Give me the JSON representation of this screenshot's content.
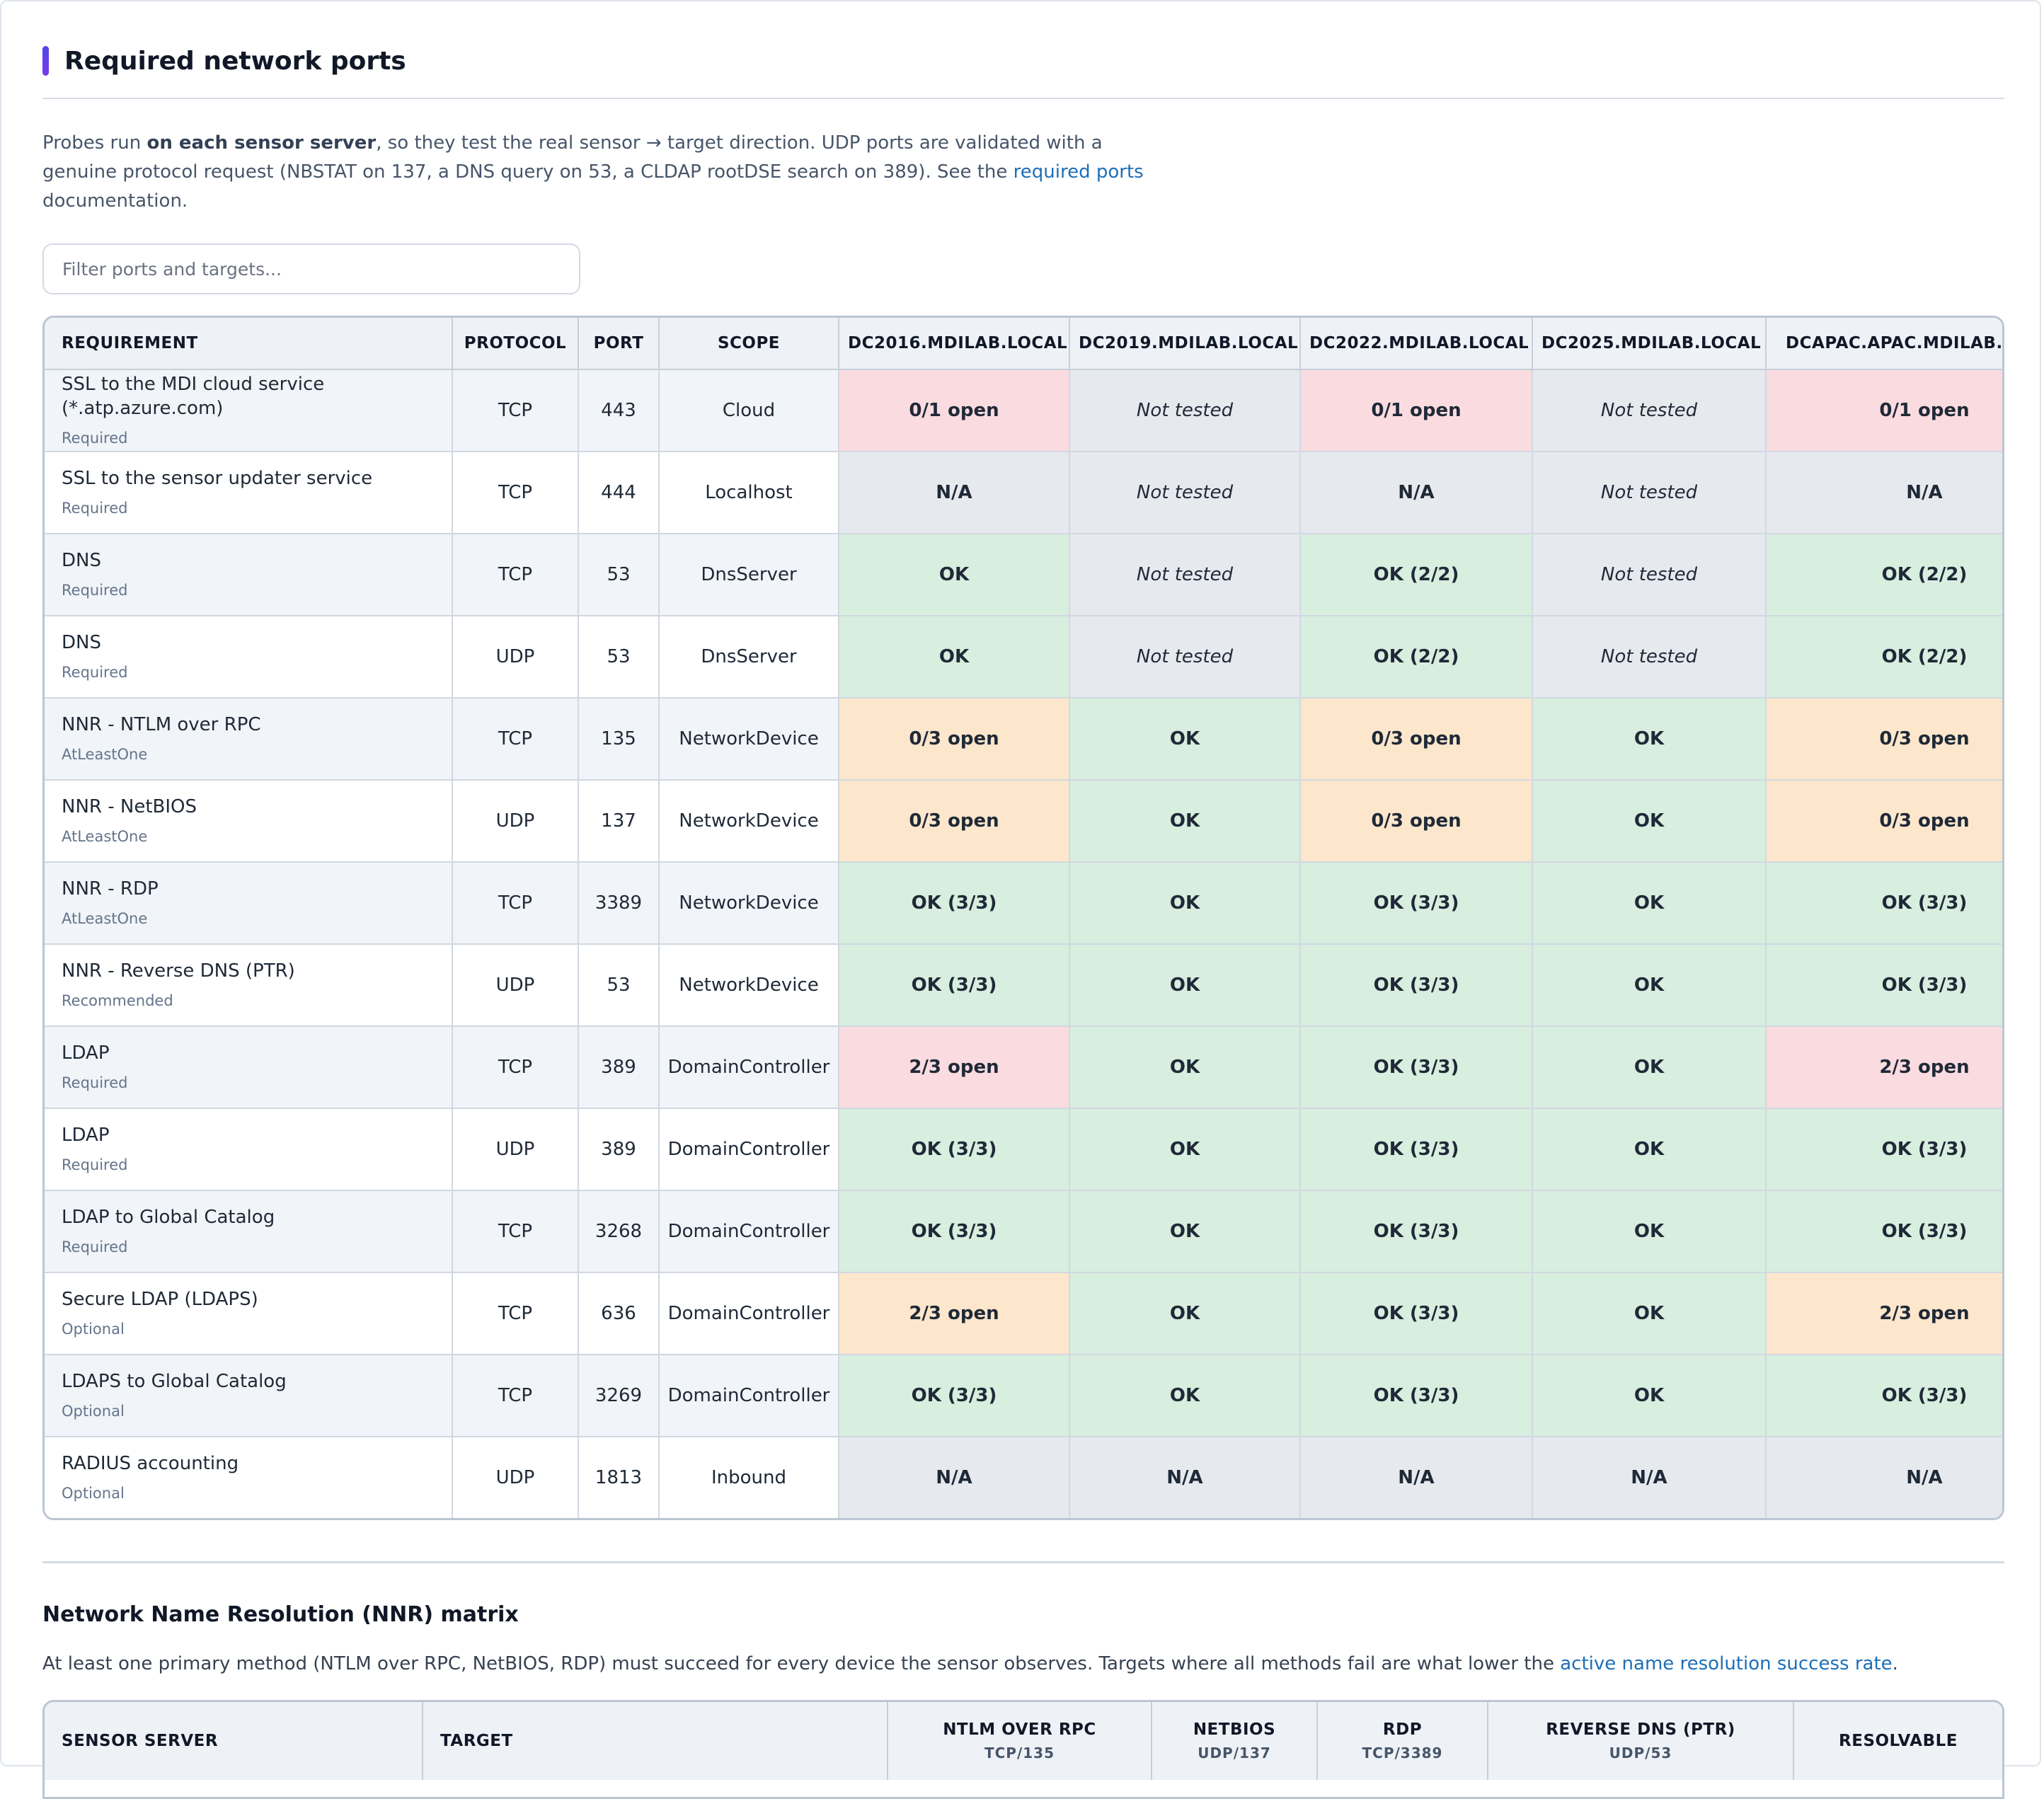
{
  "section": {
    "title": "Required network ports",
    "intro_pre": "Probes run ",
    "intro_bold": "on each sensor server",
    "intro_mid": ", so they test the real sensor → target direction. UDP ports are validated with a genuine protocol request (NBSTAT on 137, a DNS query on 53, a CLDAP rootDSE search on 389). See the ",
    "intro_link": "required ports",
    "intro_post": " documentation.",
    "filter_placeholder": "Filter ports and targets..."
  },
  "ports_table": {
    "columns": [
      "REQUIREMENT",
      "PROTOCOL",
      "PORT",
      "SCOPE",
      "DC2016.MDILAB.LOCAL",
      "DC2019.MDILAB.LOCAL",
      "DC2022.MDILAB.LOCAL",
      "DC2025.MDILAB.LOCAL",
      "DCAPAC.APAC.MDILAB.LOCAL"
    ],
    "rows": [
      {
        "name": "SSL to the MDI cloud service (*.atp.azure.com)",
        "level": "Required",
        "protocol": "TCP",
        "port": "443",
        "scope": "Cloud",
        "cells": [
          {
            "text": "0/1 open",
            "status": "fail"
          },
          {
            "text": "Not tested",
            "status": "nt"
          },
          {
            "text": "0/1 open",
            "status": "fail"
          },
          {
            "text": "Not tested",
            "status": "nt"
          },
          {
            "text": "0/1 open",
            "status": "fail"
          }
        ]
      },
      {
        "name": "SSL to the sensor updater service",
        "level": "Required",
        "protocol": "TCP",
        "port": "444",
        "scope": "Localhost",
        "cells": [
          {
            "text": "N/A",
            "status": "na"
          },
          {
            "text": "Not tested",
            "status": "nt"
          },
          {
            "text": "N/A",
            "status": "na"
          },
          {
            "text": "Not tested",
            "status": "nt"
          },
          {
            "text": "N/A",
            "status": "na"
          }
        ]
      },
      {
        "name": "DNS",
        "level": "Required",
        "protocol": "TCP",
        "port": "53",
        "scope": "DnsServer",
        "cells": [
          {
            "text": "OK",
            "status": "ok"
          },
          {
            "text": "Not tested",
            "status": "nt"
          },
          {
            "text": "OK (2/2)",
            "status": "ok"
          },
          {
            "text": "Not tested",
            "status": "nt"
          },
          {
            "text": "OK (2/2)",
            "status": "ok"
          }
        ]
      },
      {
        "name": "DNS",
        "level": "Required",
        "protocol": "UDP",
        "port": "53",
        "scope": "DnsServer",
        "cells": [
          {
            "text": "OK",
            "status": "ok"
          },
          {
            "text": "Not tested",
            "status": "nt"
          },
          {
            "text": "OK (2/2)",
            "status": "ok"
          },
          {
            "text": "Not tested",
            "status": "nt"
          },
          {
            "text": "OK (2/2)",
            "status": "ok"
          }
        ]
      },
      {
        "name": "NNR - NTLM over RPC",
        "level": "AtLeastOne",
        "protocol": "TCP",
        "port": "135",
        "scope": "NetworkDevice",
        "cells": [
          {
            "text": "0/3 open",
            "status": "warn"
          },
          {
            "text": "OK",
            "status": "ok"
          },
          {
            "text": "0/3 open",
            "status": "warn"
          },
          {
            "text": "OK",
            "status": "ok"
          },
          {
            "text": "0/3 open",
            "status": "warn"
          }
        ]
      },
      {
        "name": "NNR - NetBIOS",
        "level": "AtLeastOne",
        "protocol": "UDP",
        "port": "137",
        "scope": "NetworkDevice",
        "cells": [
          {
            "text": "0/3 open",
            "status": "warn"
          },
          {
            "text": "OK",
            "status": "ok"
          },
          {
            "text": "0/3 open",
            "status": "warn"
          },
          {
            "text": "OK",
            "status": "ok"
          },
          {
            "text": "0/3 open",
            "status": "warn"
          }
        ]
      },
      {
        "name": "NNR - RDP",
        "level": "AtLeastOne",
        "protocol": "TCP",
        "port": "3389",
        "scope": "NetworkDevice",
        "cells": [
          {
            "text": "OK (3/3)",
            "status": "ok"
          },
          {
            "text": "OK",
            "status": "ok"
          },
          {
            "text": "OK (3/3)",
            "status": "ok"
          },
          {
            "text": "OK",
            "status": "ok"
          },
          {
            "text": "OK (3/3)",
            "status": "ok"
          }
        ]
      },
      {
        "name": "NNR - Reverse DNS (PTR)",
        "level": "Recommended",
        "protocol": "UDP",
        "port": "53",
        "scope": "NetworkDevice",
        "cells": [
          {
            "text": "OK (3/3)",
            "status": "ok"
          },
          {
            "text": "OK",
            "status": "ok"
          },
          {
            "text": "OK (3/3)",
            "status": "ok"
          },
          {
            "text": "OK",
            "status": "ok"
          },
          {
            "text": "OK (3/3)",
            "status": "ok"
          }
        ]
      },
      {
        "name": "LDAP",
        "level": "Required",
        "protocol": "TCP",
        "port": "389",
        "scope": "DomainController",
        "cells": [
          {
            "text": "2/3 open",
            "status": "fail"
          },
          {
            "text": "OK",
            "status": "ok"
          },
          {
            "text": "OK (3/3)",
            "status": "ok"
          },
          {
            "text": "OK",
            "status": "ok"
          },
          {
            "text": "2/3 open",
            "status": "fail"
          }
        ]
      },
      {
        "name": "LDAP",
        "level": "Required",
        "protocol": "UDP",
        "port": "389",
        "scope": "DomainController",
        "cells": [
          {
            "text": "OK (3/3)",
            "status": "ok"
          },
          {
            "text": "OK",
            "status": "ok"
          },
          {
            "text": "OK (3/3)",
            "status": "ok"
          },
          {
            "text": "OK",
            "status": "ok"
          },
          {
            "text": "OK (3/3)",
            "status": "ok"
          }
        ]
      },
      {
        "name": "LDAP to Global Catalog",
        "level": "Required",
        "protocol": "TCP",
        "port": "3268",
        "scope": "DomainController",
        "cells": [
          {
            "text": "OK (3/3)",
            "status": "ok"
          },
          {
            "text": "OK",
            "status": "ok"
          },
          {
            "text": "OK (3/3)",
            "status": "ok"
          },
          {
            "text": "OK",
            "status": "ok"
          },
          {
            "text": "OK (3/3)",
            "status": "ok"
          }
        ]
      },
      {
        "name": "Secure LDAP (LDAPS)",
        "level": "Optional",
        "protocol": "TCP",
        "port": "636",
        "scope": "DomainController",
        "cells": [
          {
            "text": "2/3 open",
            "status": "warn"
          },
          {
            "text": "OK",
            "status": "ok"
          },
          {
            "text": "OK (3/3)",
            "status": "ok"
          },
          {
            "text": "OK",
            "status": "ok"
          },
          {
            "text": "2/3 open",
            "status": "warn"
          }
        ]
      },
      {
        "name": "LDAPS to Global Catalog",
        "level": "Optional",
        "protocol": "TCP",
        "port": "3269",
        "scope": "DomainController",
        "cells": [
          {
            "text": "OK (3/3)",
            "status": "ok"
          },
          {
            "text": "OK",
            "status": "ok"
          },
          {
            "text": "OK (3/3)",
            "status": "ok"
          },
          {
            "text": "OK",
            "status": "ok"
          },
          {
            "text": "OK (3/3)",
            "status": "ok"
          }
        ]
      },
      {
        "name": "RADIUS accounting",
        "level": "Optional",
        "protocol": "UDP",
        "port": "1813",
        "scope": "Inbound",
        "cells": [
          {
            "text": "N/A",
            "status": "na"
          },
          {
            "text": "N/A",
            "status": "na"
          },
          {
            "text": "N/A",
            "status": "na"
          },
          {
            "text": "N/A",
            "status": "na"
          },
          {
            "text": "N/A",
            "status": "na"
          }
        ]
      }
    ]
  },
  "nnr": {
    "title": "Network Name Resolution (NNR) matrix",
    "desc_pre": "At least one primary method (NTLM over RPC, NetBIOS, RDP) must succeed for every device the sensor observes. Targets where all methods fail are what lower the ",
    "desc_link": "active name resolution success rate",
    "desc_post": ".",
    "columns": [
      {
        "label": "SENSOR SERVER",
        "sub": ""
      },
      {
        "label": "TARGET",
        "sub": ""
      },
      {
        "label": "NTLM OVER RPC",
        "sub": "TCP/135"
      },
      {
        "label": "NETBIOS",
        "sub": "UDP/137"
      },
      {
        "label": "RDP",
        "sub": "TCP/3389"
      },
      {
        "label": "REVERSE DNS (PTR)",
        "sub": "UDP/53"
      },
      {
        "label": "RESOLVABLE",
        "sub": ""
      }
    ]
  },
  "colors": {
    "fail_bg": "#fadbdf",
    "fail_text": "#b4122b",
    "warn_bg": "#fce6cc",
    "warn_text": "#8a3f0b",
    "ok_bg": "#d8eedf",
    "ok_text": "#13733a",
    "na_bg": "#e6e9ee",
    "na_text": "#6b7280",
    "link": "#1d6fb8",
    "accent": "#4f46e5"
  }
}
